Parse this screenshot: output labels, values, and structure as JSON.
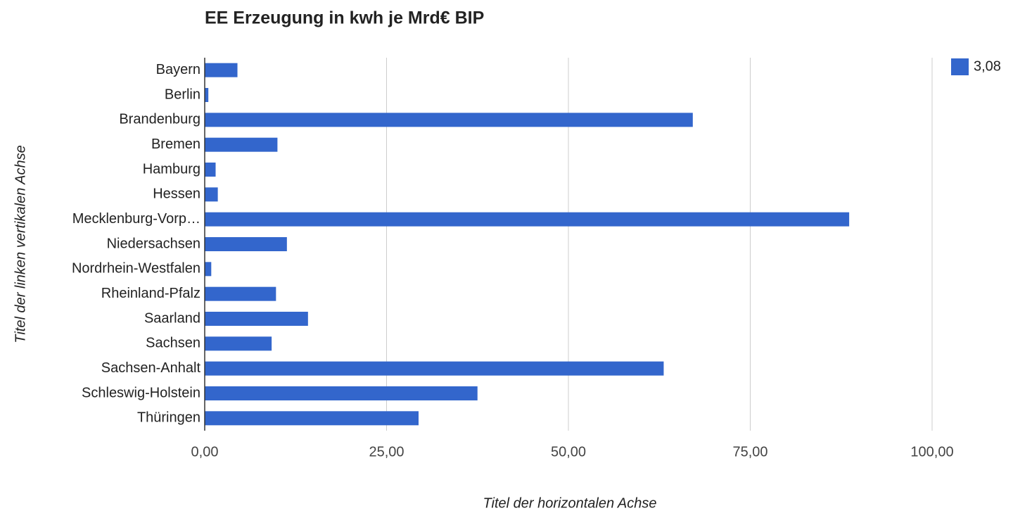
{
  "chart_data": {
    "type": "bar",
    "orientation": "horizontal",
    "title": "EE Erzeugung in kwh je Mrd€ BIP",
    "x_label": "Titel der horizontalen Achse",
    "y_label": "Titel der linken vertikalen Achse",
    "categories": [
      "Bayern",
      "Berlin",
      "Brandenburg",
      "Bremen",
      "Hamburg",
      "Hessen",
      "Mecklenburg-Vorp…",
      "Niedersachsen",
      "Nordrhein-Westfalen",
      "Rheinland-Pfalz",
      "Saarland",
      "Sachsen",
      "Sachsen-Anhalt",
      "Schleswig-Holstein",
      "Thüringen"
    ],
    "series": [
      {
        "name": "3,08",
        "color": "#3366cc",
        "values": [
          4.5,
          0.5,
          67.1,
          10.0,
          1.5,
          1.8,
          88.6,
          11.3,
          0.9,
          9.8,
          14.2,
          9.2,
          63.1,
          37.5,
          29.4
        ]
      }
    ],
    "xlim": [
      0,
      100
    ],
    "xticks": [
      {
        "value": 0,
        "label": "0,00"
      },
      {
        "value": 25,
        "label": "25,00"
      },
      {
        "value": 50,
        "label": "50,00"
      },
      {
        "value": 75,
        "label": "75,00"
      },
      {
        "value": 100,
        "label": "100,00"
      }
    ],
    "grid": true,
    "legend": "right"
  }
}
